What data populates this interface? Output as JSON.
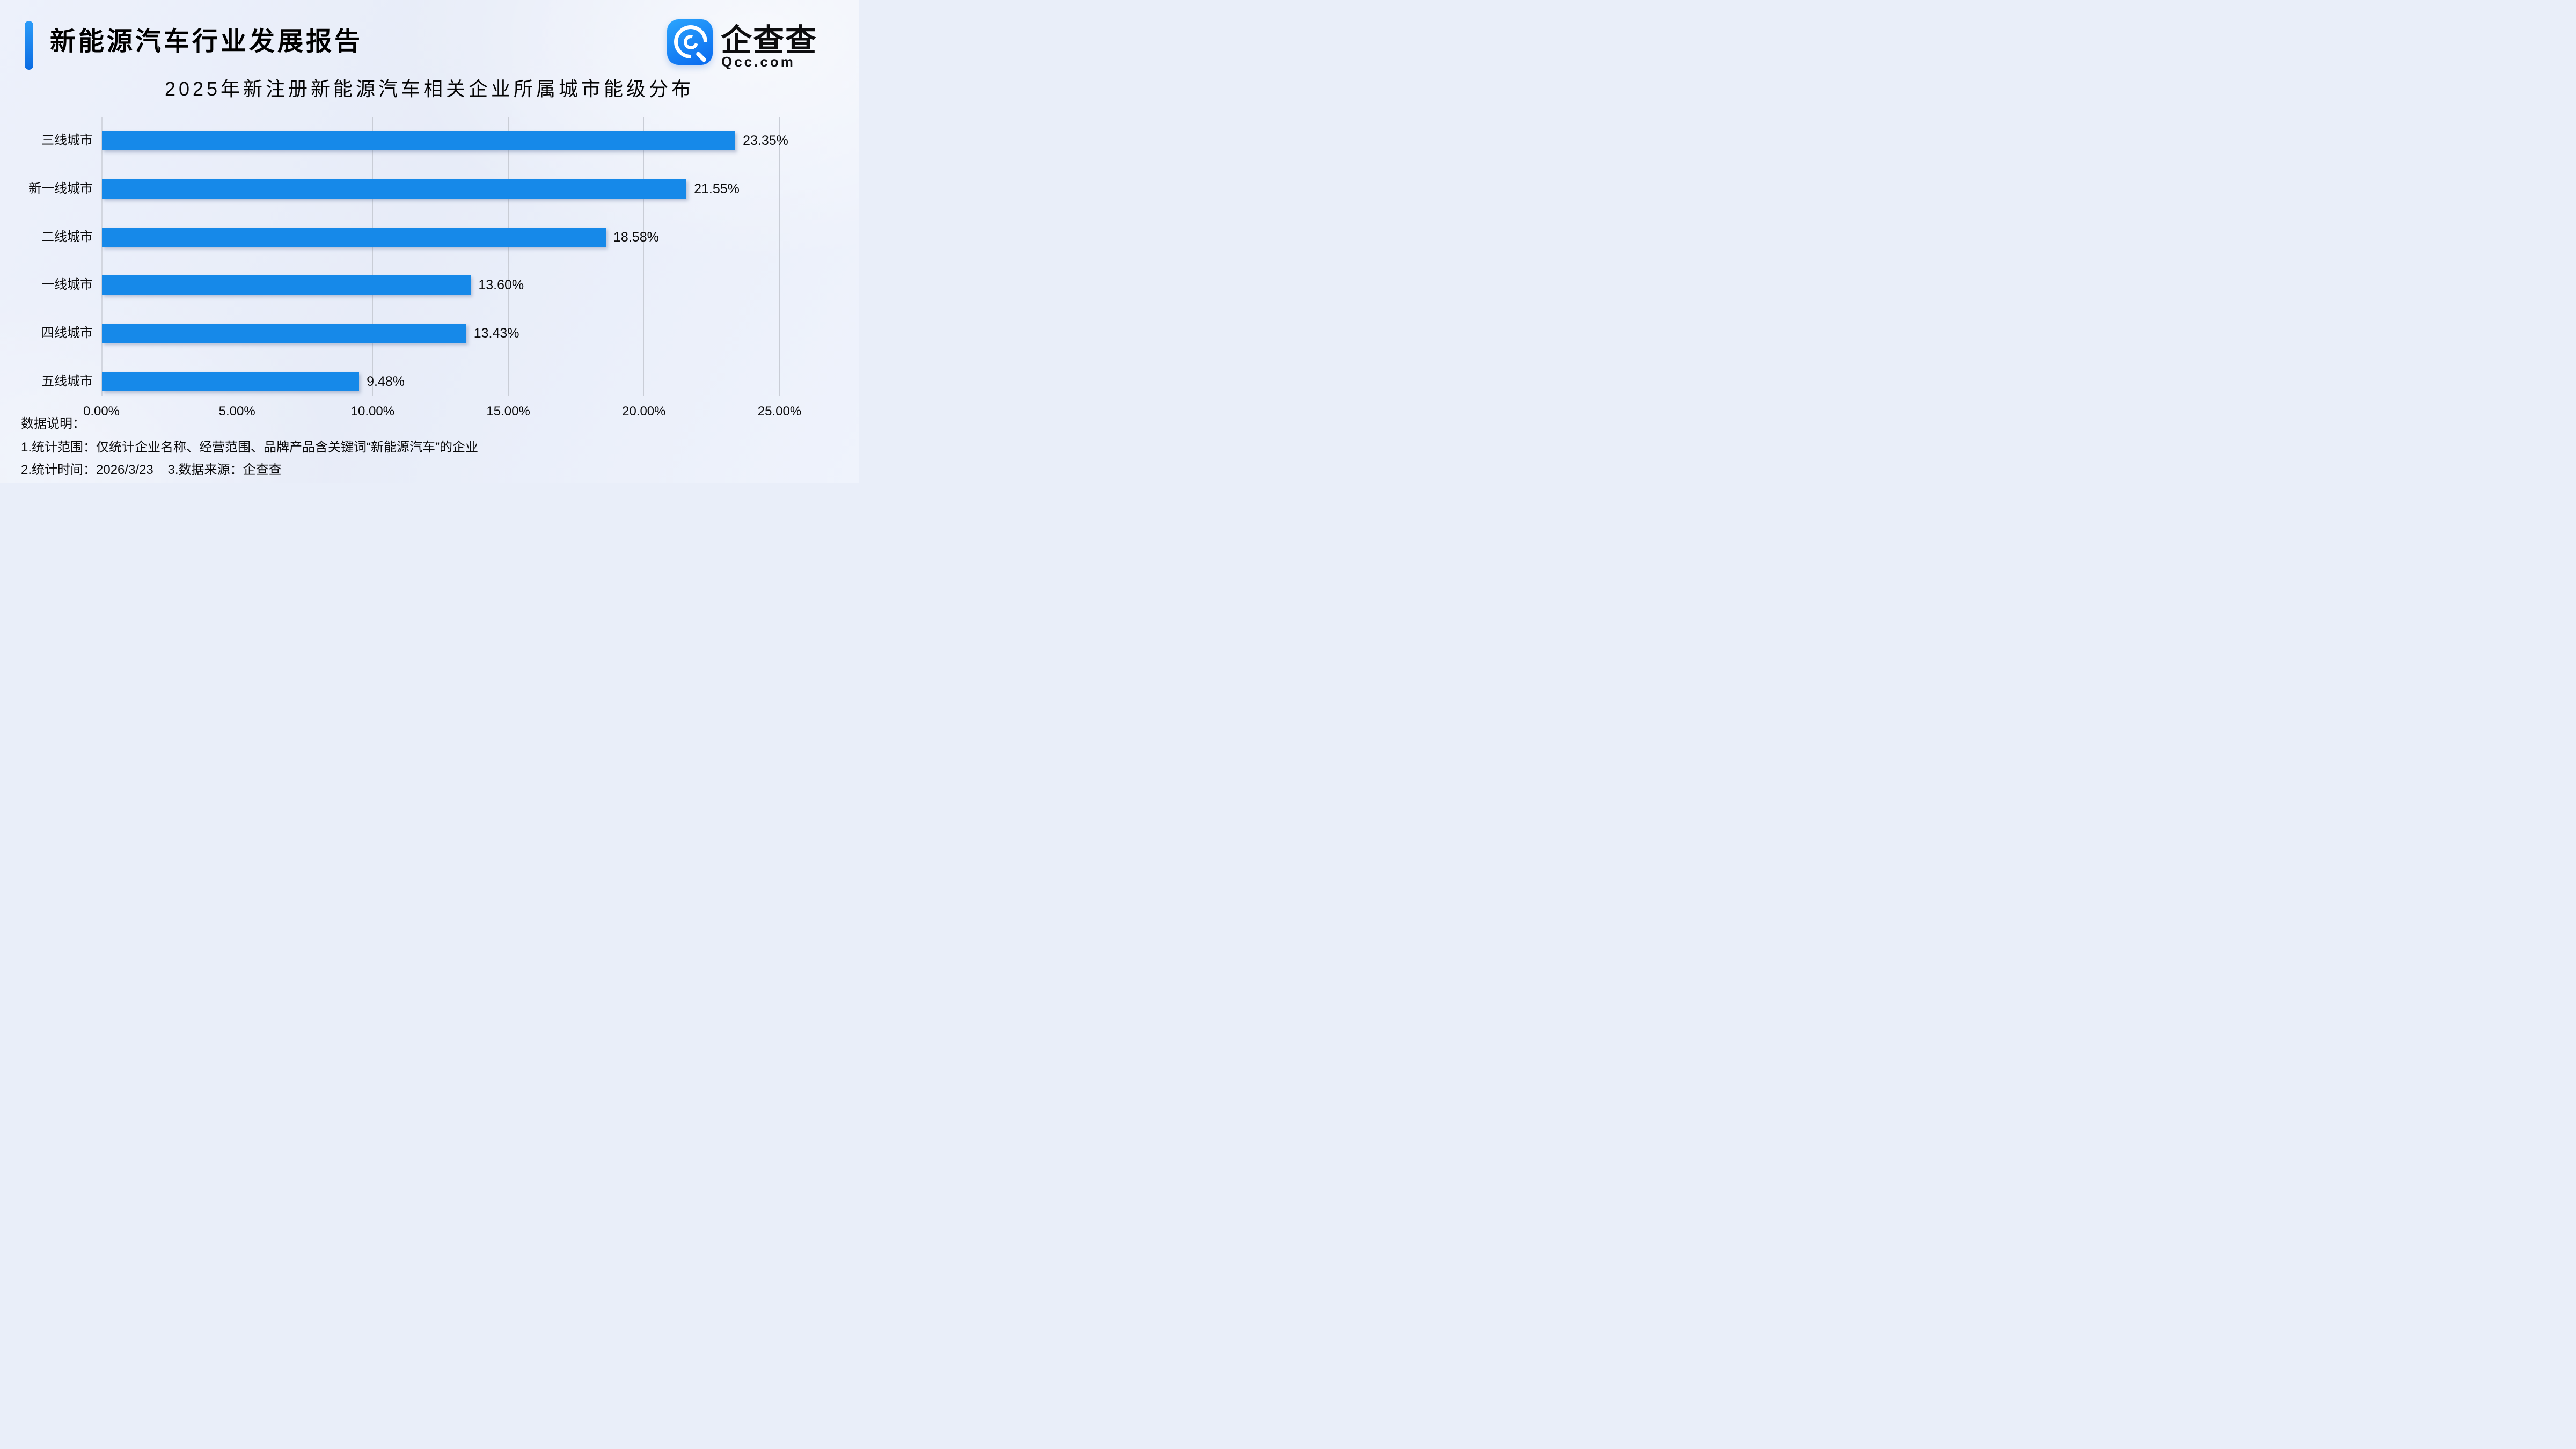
{
  "header": {
    "title": "新能源汽车行业发展报告"
  },
  "logo": {
    "name": "企查查",
    "domain": "Qcc.com",
    "icon": "qcc-q-mark-icon",
    "icon_color_top": "#2ba5fd",
    "icon_color_bottom": "#0d6ff0"
  },
  "chart_data": {
    "type": "bar",
    "orientation": "horizontal",
    "title": "2025年新注册新能源汽车相关企业所属城市能级分布",
    "categories": [
      "三线城市",
      "新一线城市",
      "二线城市",
      "一线城市",
      "四线城市",
      "五线城市"
    ],
    "values": [
      23.35,
      21.55,
      18.58,
      13.6,
      13.43,
      9.48
    ],
    "value_labels": [
      "23.35%",
      "21.55%",
      "18.58%",
      "13.60%",
      "13.43%",
      "9.48%"
    ],
    "x_ticks": [
      "0.00%",
      "5.00%",
      "10.00%",
      "15.00%",
      "20.00%",
      "25.00%"
    ],
    "xlim": [
      0,
      25
    ],
    "grid": true,
    "legend": false,
    "bar_color": "#1689E9"
  },
  "footer": {
    "heading": "数据说明：",
    "note1": "1.统计范围：仅统计企业名称、经营范围、品牌产品含关键词“新能源汽车”的企业",
    "note2_time": "2.统计时间：2026/3/23",
    "note2_source": "3.数据来源：企查查"
  }
}
